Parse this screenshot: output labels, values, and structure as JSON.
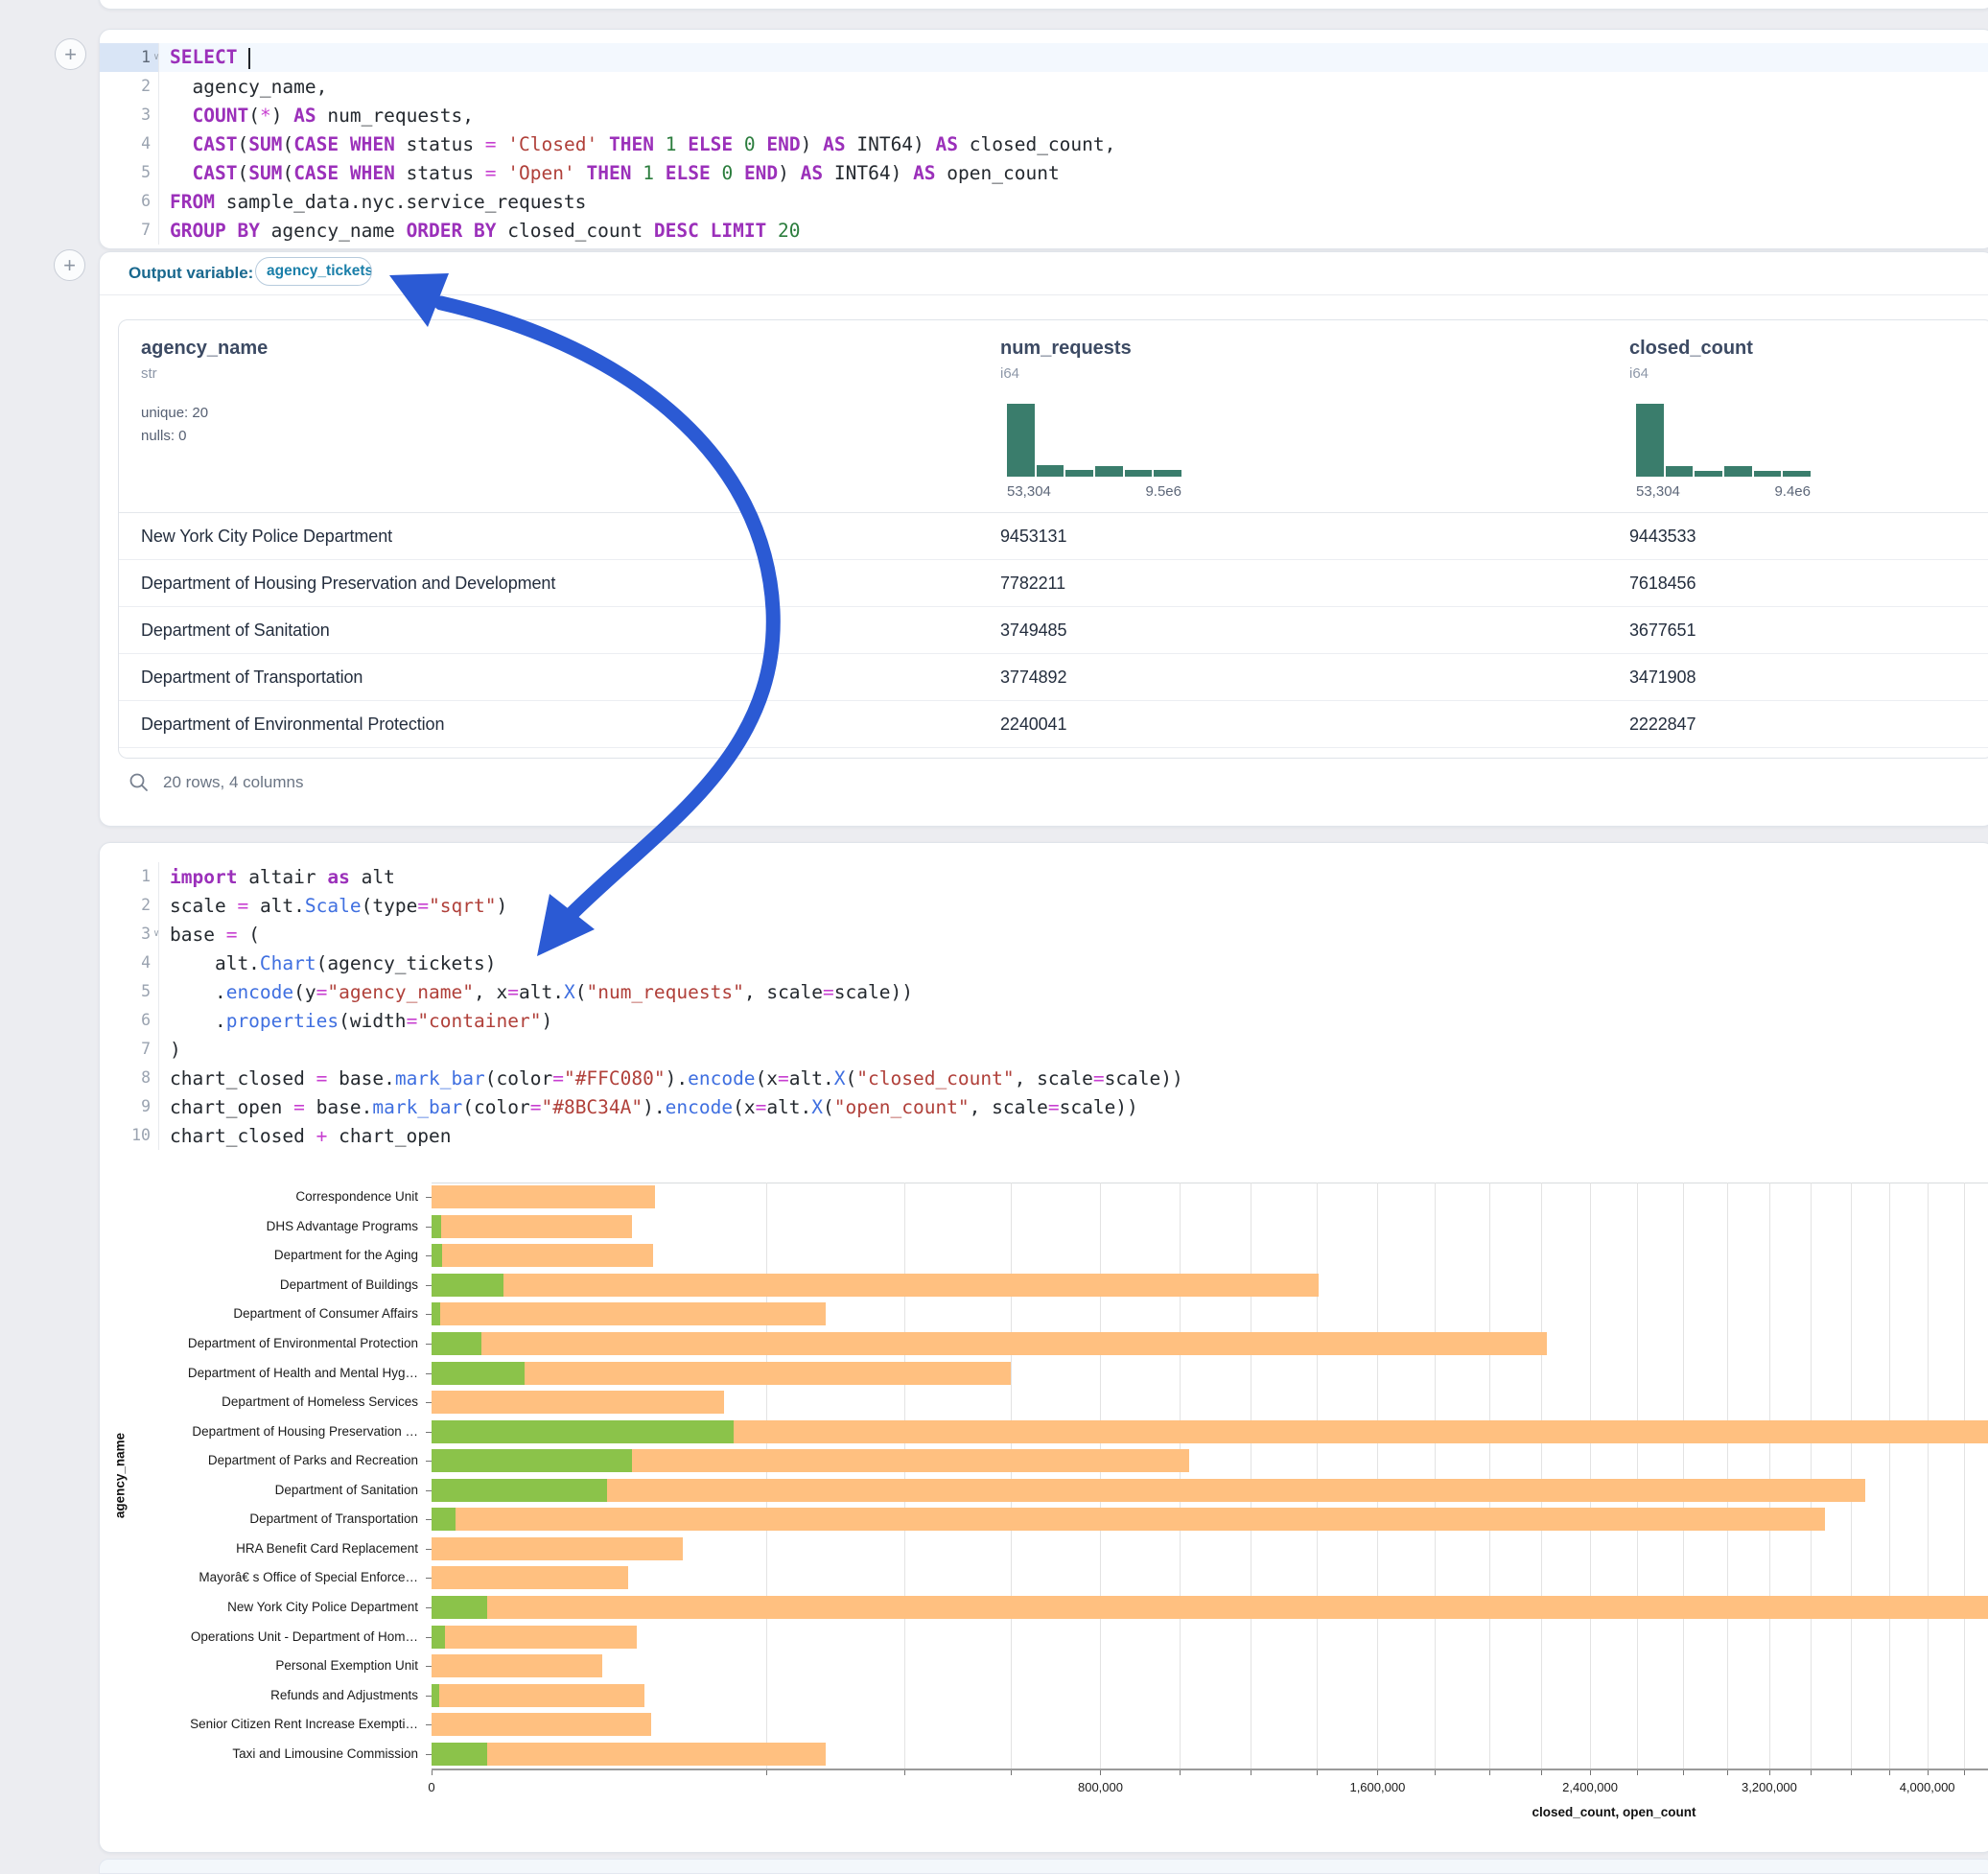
{
  "page": {
    "background": "#ecedf1"
  },
  "icons": {
    "plus_top": "+",
    "plus_middle": "+",
    "search": "magnifier",
    "fold_chevron": "∨"
  },
  "colors": {
    "arrow_annotation": "#2b5ad4",
    "histogram_bar": "#3a7d6c",
    "closed_bar": "#FFC080",
    "open_bar": "#8BC34A"
  },
  "sql_cell": {
    "lines": [
      {
        "n": "1",
        "fold": true,
        "active": true,
        "tokens": [
          [
            "kw",
            "SELECT"
          ],
          [
            "pl",
            " "
          ],
          [
            "cur",
            ""
          ]
        ]
      },
      {
        "n": "2",
        "tokens": [
          [
            "pl",
            "  agency_name,"
          ]
        ]
      },
      {
        "n": "3",
        "tokens": [
          [
            "pl",
            "  "
          ],
          [
            "kw",
            "COUNT"
          ],
          [
            "pl",
            "("
          ],
          [
            "op",
            "*"
          ],
          [
            "pl",
            ") "
          ],
          [
            "kw",
            "AS"
          ],
          [
            "pl",
            " num_requests,"
          ]
        ]
      },
      {
        "n": "4",
        "tokens": [
          [
            "pl",
            "  "
          ],
          [
            "kw",
            "CAST"
          ],
          [
            "pl",
            "("
          ],
          [
            "kw",
            "SUM"
          ],
          [
            "pl",
            "("
          ],
          [
            "kw",
            "CASE"
          ],
          [
            "pl",
            " "
          ],
          [
            "kw",
            "WHEN"
          ],
          [
            "pl",
            " status "
          ],
          [
            "op",
            "="
          ],
          [
            "pl",
            " "
          ],
          [
            "str",
            "'Closed'"
          ],
          [
            "pl",
            " "
          ],
          [
            "kw",
            "THEN"
          ],
          [
            "pl",
            " "
          ],
          [
            "num",
            "1"
          ],
          [
            "pl",
            " "
          ],
          [
            "kw",
            "ELSE"
          ],
          [
            "pl",
            " "
          ],
          [
            "num",
            "0"
          ],
          [
            "pl",
            " "
          ],
          [
            "kw",
            "END"
          ],
          [
            "pl",
            ") "
          ],
          [
            "kw",
            "AS"
          ],
          [
            "pl",
            " INT64) "
          ],
          [
            "kw",
            "AS"
          ],
          [
            "pl",
            " closed_count,"
          ]
        ]
      },
      {
        "n": "5",
        "tokens": [
          [
            "pl",
            "  "
          ],
          [
            "kw",
            "CAST"
          ],
          [
            "pl",
            "("
          ],
          [
            "kw",
            "SUM"
          ],
          [
            "pl",
            "("
          ],
          [
            "kw",
            "CASE"
          ],
          [
            "pl",
            " "
          ],
          [
            "kw",
            "WHEN"
          ],
          [
            "pl",
            " status "
          ],
          [
            "op",
            "="
          ],
          [
            "pl",
            " "
          ],
          [
            "str",
            "'Open'"
          ],
          [
            "pl",
            " "
          ],
          [
            "kw",
            "THEN"
          ],
          [
            "pl",
            " "
          ],
          [
            "num",
            "1"
          ],
          [
            "pl",
            " "
          ],
          [
            "kw",
            "ELSE"
          ],
          [
            "pl",
            " "
          ],
          [
            "num",
            "0"
          ],
          [
            "pl",
            " "
          ],
          [
            "kw",
            "END"
          ],
          [
            "pl",
            ") "
          ],
          [
            "kw",
            "AS"
          ],
          [
            "pl",
            " INT64) "
          ],
          [
            "kw",
            "AS"
          ],
          [
            "pl",
            " open_count"
          ]
        ]
      },
      {
        "n": "6",
        "tokens": [
          [
            "kw",
            "FROM"
          ],
          [
            "pl",
            " sample_data.nyc.service_requests"
          ]
        ]
      },
      {
        "n": "7",
        "tokens": [
          [
            "kw",
            "GROUP"
          ],
          [
            "pl",
            " "
          ],
          [
            "kw",
            "BY"
          ],
          [
            "pl",
            " agency_name "
          ],
          [
            "kw",
            "ORDER"
          ],
          [
            "pl",
            " "
          ],
          [
            "kw",
            "BY"
          ],
          [
            "pl",
            " closed_count "
          ],
          [
            "kw",
            "DESC"
          ],
          [
            "pl",
            " "
          ],
          [
            "kw",
            "LIMIT"
          ],
          [
            "pl",
            " "
          ],
          [
            "num",
            "20"
          ]
        ]
      }
    ]
  },
  "output_section": {
    "label": "Output variable:",
    "variable": "agency_tickets",
    "footer": "20 rows, 4 columns",
    "table": {
      "columns": [
        {
          "name": "agency_name",
          "type": "str",
          "stats": [
            "unique: 20",
            "nulls: 0"
          ]
        },
        {
          "name": "num_requests",
          "type": "i64",
          "hist": {
            "bars": [
              100,
              16,
              9,
              15,
              9,
              9
            ],
            "min_label": "53,304",
            "max_label": "9.5e6"
          }
        },
        {
          "name": "closed_count",
          "type": "i64",
          "hist": {
            "bars": [
              100,
              15,
              8,
              15,
              8,
              8
            ],
            "min_label": "53,304",
            "max_label": "9.4e6"
          }
        }
      ],
      "rows": [
        [
          "New York City Police Department",
          "9453131",
          "9443533"
        ],
        [
          "Department of Housing Preservation and Development",
          "7782211",
          "7618456"
        ],
        [
          "Department of Sanitation",
          "3749485",
          "3677651"
        ],
        [
          "Department of Transportation",
          "3774892",
          "3471908"
        ],
        [
          "Department of Environmental Protection",
          "2240041",
          "2222847"
        ]
      ]
    }
  },
  "python_cell": {
    "lines": [
      {
        "n": "1",
        "tokens": [
          [
            "kw",
            "import"
          ],
          [
            "pl",
            " altair "
          ],
          [
            "kw",
            "as"
          ],
          [
            "pl",
            " alt"
          ]
        ]
      },
      {
        "n": "2",
        "tokens": [
          [
            "pl",
            "scale "
          ],
          [
            "op",
            "="
          ],
          [
            "pl",
            " alt."
          ],
          [
            "fn",
            "Scale"
          ],
          [
            "pl",
            "(type"
          ],
          [
            "op",
            "="
          ],
          [
            "str",
            "\"sqrt\""
          ],
          [
            "pl",
            ")"
          ]
        ]
      },
      {
        "n": "3",
        "fold": true,
        "tokens": [
          [
            "pl",
            "base "
          ],
          [
            "op",
            "="
          ],
          [
            "pl",
            " ("
          ]
        ]
      },
      {
        "n": "4",
        "tokens": [
          [
            "pl",
            "    alt."
          ],
          [
            "fn",
            "Chart"
          ],
          [
            "pl",
            "(agency_tickets)"
          ]
        ]
      },
      {
        "n": "5",
        "tokens": [
          [
            "pl",
            "    ."
          ],
          [
            "fn",
            "encode"
          ],
          [
            "pl",
            "(y"
          ],
          [
            "op",
            "="
          ],
          [
            "str",
            "\"agency_name\""
          ],
          [
            "pl",
            ", x"
          ],
          [
            "op",
            "="
          ],
          [
            "pl",
            "alt."
          ],
          [
            "fn",
            "X"
          ],
          [
            "pl",
            "("
          ],
          [
            "str",
            "\"num_requests\""
          ],
          [
            "pl",
            ", scale"
          ],
          [
            "op",
            "="
          ],
          [
            "pl",
            "scale))"
          ]
        ]
      },
      {
        "n": "6",
        "tokens": [
          [
            "pl",
            "    ."
          ],
          [
            "fn",
            "properties"
          ],
          [
            "pl",
            "(width"
          ],
          [
            "op",
            "="
          ],
          [
            "str",
            "\"container\""
          ],
          [
            "pl",
            ")"
          ]
        ]
      },
      {
        "n": "7",
        "tokens": [
          [
            "pl",
            ")"
          ]
        ]
      },
      {
        "n": "8",
        "tokens": [
          [
            "pl",
            "chart_closed "
          ],
          [
            "op",
            "="
          ],
          [
            "pl",
            " base."
          ],
          [
            "fn",
            "mark_bar"
          ],
          [
            "pl",
            "(color"
          ],
          [
            "op",
            "="
          ],
          [
            "str",
            "\"#FFC080\""
          ],
          [
            "pl",
            ")."
          ],
          [
            "fn",
            "encode"
          ],
          [
            "pl",
            "(x"
          ],
          [
            "op",
            "="
          ],
          [
            "pl",
            "alt."
          ],
          [
            "fn",
            "X"
          ],
          [
            "pl",
            "("
          ],
          [
            "str",
            "\"closed_count\""
          ],
          [
            "pl",
            ", scale"
          ],
          [
            "op",
            "="
          ],
          [
            "pl",
            "scale))"
          ]
        ]
      },
      {
        "n": "9",
        "tokens": [
          [
            "pl",
            "chart_open "
          ],
          [
            "op",
            "="
          ],
          [
            "pl",
            " base."
          ],
          [
            "fn",
            "mark_bar"
          ],
          [
            "pl",
            "(color"
          ],
          [
            "op",
            "="
          ],
          [
            "str",
            "\"#8BC34A\""
          ],
          [
            "pl",
            ")."
          ],
          [
            "fn",
            "encode"
          ],
          [
            "pl",
            "(x"
          ],
          [
            "op",
            "="
          ],
          [
            "pl",
            "alt."
          ],
          [
            "fn",
            "X"
          ],
          [
            "pl",
            "("
          ],
          [
            "str",
            "\"open_count\""
          ],
          [
            "pl",
            ", scale"
          ],
          [
            "op",
            "="
          ],
          [
            "pl",
            "scale))"
          ]
        ]
      },
      {
        "n": "10",
        "tokens": [
          [
            "pl",
            "chart_closed "
          ],
          [
            "op",
            "+"
          ],
          [
            "pl",
            " chart_open"
          ]
        ]
      }
    ]
  },
  "chart_data": {
    "type": "bar",
    "orientation": "horizontal",
    "x_scale": "sqrt",
    "xlabel": "closed_count, open_count",
    "ylabel": "agency_name",
    "x_domain": [
      0,
      10000000
    ],
    "gridline_step": 200000,
    "major_tick_step": 800000,
    "x_tick_labels": [
      "0",
      "800,000",
      "1,600,000",
      "2,400,000",
      "3,200,000",
      "4,000,000"
    ],
    "legend": "none",
    "categories": [
      "Correspondence Unit",
      "DHS Advantage Programs",
      "Department for the Aging",
      "Department of Buildings",
      "Department of Consumer Affairs",
      "Department of Environmental Protection",
      "Department of Health and Mental Hyg…",
      "Department of Homeless Services",
      "Department of Housing Preservation …",
      "Department of Parks and Recreation",
      "Department of Sanitation",
      "Department of Transportation",
      "HRA Benefit Card Replacement",
      "Mayorâ€ s Office of Special Enforce…",
      "New York City Police Department",
      "Operations Unit - Department of Hom…",
      "Personal Exemption Unit",
      "Refunds and Adjustments",
      "Senior Citizen Rent Increase Exempti…",
      "Taxi and Limousine Commission"
    ],
    "series": [
      {
        "name": "closed_count",
        "color": "#FFC080",
        "values": [
          89000,
          72000,
          88000,
          1407000,
          278000,
          2222847,
          600000,
          153000,
          7618456,
          1026000,
          3677651,
          3471908,
          113000,
          69000,
          9443533,
          75000,
          52000,
          81000,
          86000,
          278000
        ]
      },
      {
        "name": "open_count",
        "color": "#8BC34A",
        "values": [
          0,
          150,
          200,
          9200,
          120,
          4500,
          15500,
          0,
          163000,
          72000,
          55000,
          1000,
          0,
          0,
          5500,
          300,
          0,
          100,
          0,
          5500
        ]
      }
    ]
  }
}
